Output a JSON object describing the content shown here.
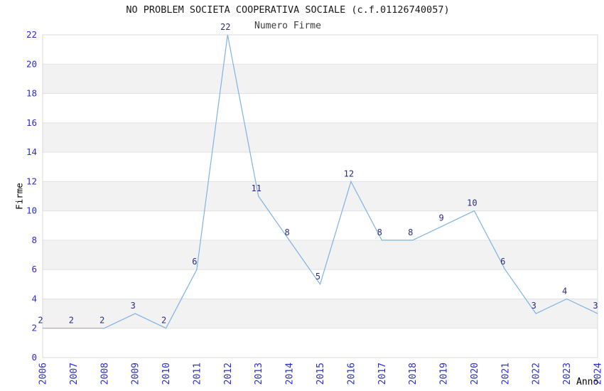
{
  "chart_data": {
    "type": "line",
    "title": "NO PROBLEM SOCIETA COOPERATIVA SOCIALE (c.f.01126740057)",
    "subtitle": "Numero Firme",
    "xlabel": "Anno",
    "ylabel": "Firme",
    "x": [
      2006,
      2007,
      2008,
      2009,
      2010,
      2011,
      2012,
      2013,
      2014,
      2015,
      2016,
      2017,
      2018,
      2019,
      2020,
      2021,
      2022,
      2023,
      2024
    ],
    "series": [
      {
        "name": "Numero Firme",
        "values": [
          2,
          2,
          2,
          3,
          2,
          6,
          22,
          11,
          8,
          5,
          12,
          8,
          8,
          9,
          10,
          6,
          3,
          4,
          3
        ]
      }
    ],
    "ylim": [
      0,
      22
    ],
    "ytick_step": 2,
    "grid": "horizontal-stripes-and-lines",
    "legend": "none",
    "data_labels_shown": true,
    "colors": {
      "line": "#7fb2e6",
      "tick_label": "#2b2bd4",
      "data_label": "#2b2b80",
      "stripe": "#f2f2f2",
      "gridline": "#e2e2e2",
      "plot_border": "#d8d8d8",
      "title": "#1a1a1a",
      "subtitle": "#3c3c3c",
      "axis_label": "#000000"
    }
  }
}
